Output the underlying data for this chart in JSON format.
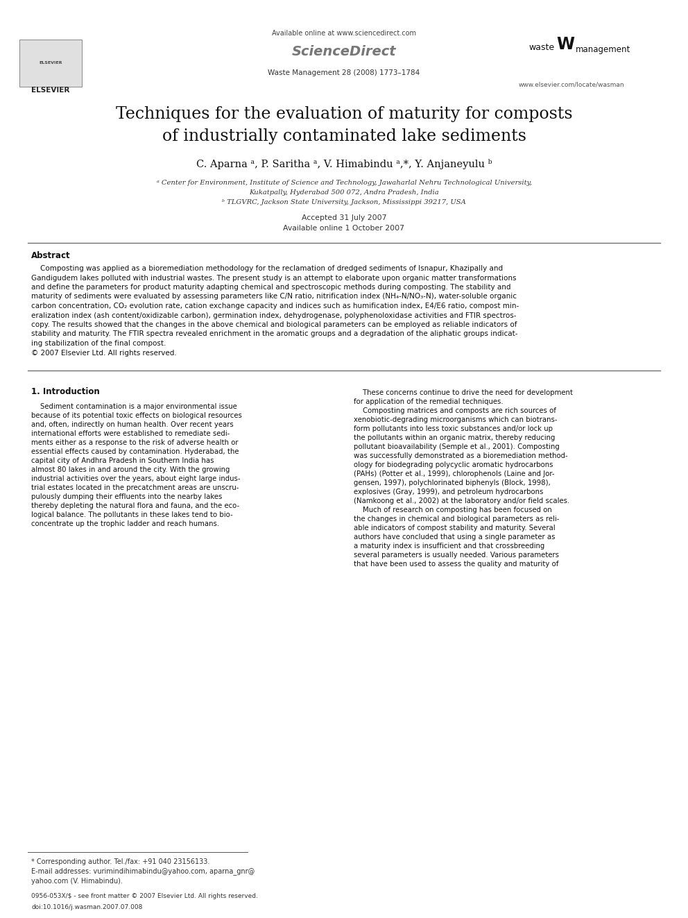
{
  "bg_color": "#ffffff",
  "avail_online": "Available online at www.sciencedirect.com",
  "journal_ref": "Waste Management 28 (2008) 1773–1784",
  "website": "www.elsevier.com/locate/wasman",
  "title_line1": "Techniques for the evaluation of maturity for composts",
  "title_line2": "of industrially contaminated lake sediments",
  "authors": "C. Aparna ᵃ, P. Saritha ᵃ, V. Himabindu ᵃ,*, Y. Anjaneyulu ᵇ",
  "affil_a": "ᵃ Center for Environment, Institute of Science and Technology, Jawaharlal Nehru Technological University,",
  "affil_a2": "Kukatpally, Hyderabad 500 072, Andra Pradesh, India",
  "affil_b": "ᵇ TLGVRC, Jackson State University, Jackson, Mississippi 39217, USA",
  "accepted": "Accepted 31 July 2007",
  "online_date": "Available online 1 October 2007",
  "abstract_title": "Abstract",
  "abstract_lines": [
    "    Composting was applied as a bioremediation methodology for the reclamation of dredged sediments of Isnapur, Khazipally and",
    "Gandigudem lakes polluted with industrial wastes. The present study is an attempt to elaborate upon organic matter transformations",
    "and define the parameters for product maturity adapting chemical and spectroscopic methods during composting. The stability and",
    "maturity of sediments were evaluated by assessing parameters like C/N ratio, nitrification index (NH₄-N/NO₃-N), water-soluble organic",
    "carbon concentration, CO₂ evolution rate, cation exchange capacity and indices such as humification index, E4/E6 ratio, compost min-",
    "eralization index (ash content/oxidizable carbon), germination index, dehydrogenase, polyphenoloxidase activities and FTIR spectros-",
    "copy. The results showed that the changes in the above chemical and biological parameters can be employed as reliable indicators of",
    "stability and maturity. The FTIR spectra revealed enrichment in the aromatic groups and a degradation of the aliphatic groups indicat-",
    "ing stabilization of the final compost.",
    "© 2007 Elsevier Ltd. All rights reserved."
  ],
  "sec1_title": "1. Introduction",
  "col1_lines": [
    "    Sediment contamination is a major environmental issue",
    "because of its potential toxic effects on biological resources",
    "and, often, indirectly on human health. Over recent years",
    "international efforts were established to remediate sedi-",
    "ments either as a response to the risk of adverse health or",
    "essential effects caused by contamination. Hyderabad, the",
    "capital city of Andhra Pradesh in Southern India has",
    "almost 80 lakes in and around the city. With the growing",
    "industrial activities over the years, about eight large indus-",
    "trial estates located in the precatchment areas are unscru-",
    "pulously dumping their effluents into the nearby lakes",
    "thereby depleting the natural flora and fauna, and the eco-",
    "logical balance. The pollutants in these lakes tend to bio-",
    "concentrate up the trophic ladder and reach humans."
  ],
  "col2_lines": [
    "    These concerns continue to drive the need for development",
    "for application of the remedial techniques.",
    "    Composting matrices and composts are rich sources of",
    "xenobiotic-degrading microorganisms which can biotrans-",
    "form pollutants into less toxic substances and/or lock up",
    "the pollutants within an organic matrix, thereby reducing",
    "pollutant bioavailability (Semple et al., 2001). Composting",
    "was successfully demonstrated as a bioremediation method-",
    "ology for biodegrading polycyclic aromatic hydrocarbons",
    "(PAHs) (Potter et al., 1999), chlorophenols (Laine and Jor-",
    "gensen, 1997), polychlorinated biphenyls (Block, 1998),",
    "explosives (Gray, 1999), and petroleum hydrocarbons",
    "(Namkoong et al., 2002) at the laboratory and/or field scales.",
    "    Much of research on composting has been focused on",
    "the changes in chemical and biological parameters as reli-",
    "able indicators of compost stability and maturity. Several",
    "authors have concluded that using a single parameter as",
    "a maturity index is insufficient and that crossbreeding",
    "several parameters is usually needed. Various parameters",
    "that have been used to assess the quality and maturity of"
  ],
  "footnote1": "* Corresponding author. Tel./fax: +91 040 23156133.",
  "footnote2": "E-mail addresses: vurimindihimabindu@yahoo.com, aparna_gnr@",
  "footnote3": "yahoo.com (V. Himabindu).",
  "bottom1": "0956-053X/$ - see front matter © 2007 Elsevier Ltd. All rights reserved.",
  "bottom2": "doi:10.1016/j.wasman.2007.07.008"
}
